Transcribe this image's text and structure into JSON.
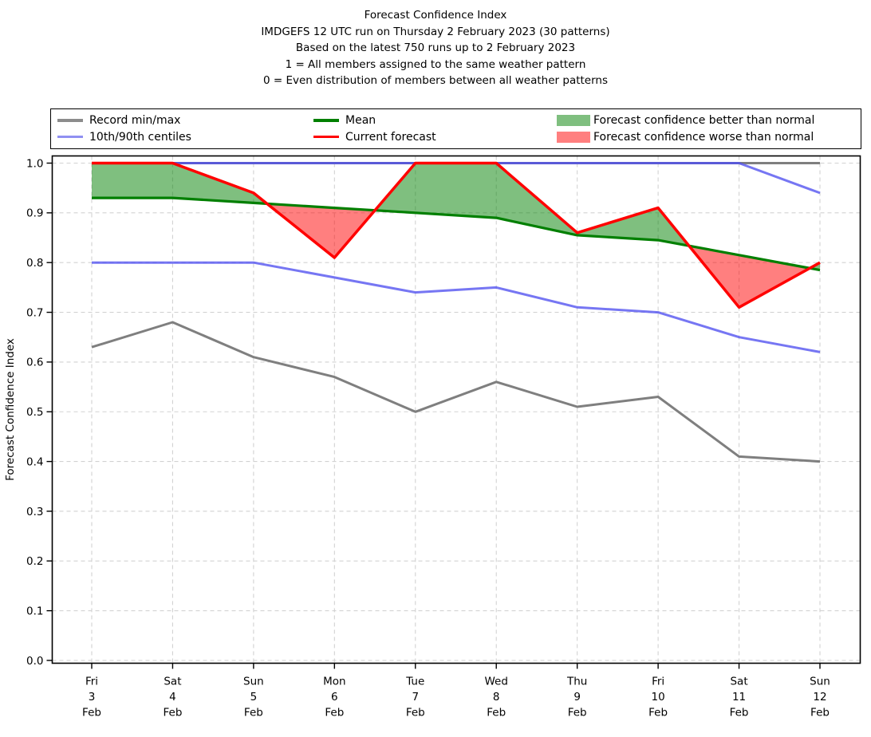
{
  "chart_data": {
    "type": "line",
    "title": "Forecast Confidence Index",
    "title_lines": [
      "Forecast Confidence Index",
      "IMDGEFS 12 UTC run on Thursday 2 February 2023 (30 patterns)",
      "Based on the latest 750 runs up to 2 February 2023",
      "1 = All members assigned to the same weather pattern",
      "0 = Even distribution of members between all weather patterns"
    ],
    "ylabel": "Forecast Confidence Index",
    "xlabel": "",
    "ylim": [
      0.0,
      1.0
    ],
    "yticks": [
      0.0,
      0.1,
      0.2,
      0.3,
      0.4,
      0.5,
      0.6,
      0.7,
      0.8,
      0.9,
      1.0
    ],
    "grid": true,
    "grid_style": "dashed",
    "legend_position": "top",
    "categories": [
      "Fri 3 Feb",
      "Sat 4 Feb",
      "Sun 5 Feb",
      "Mon 6 Feb",
      "Tue 7 Feb",
      "Wed 8 Feb",
      "Thu 9 Feb",
      "Fri 10 Feb",
      "Sat 11 Feb",
      "Sun 12 Feb"
    ],
    "x_tick_lines": [
      [
        "Fri",
        "3",
        "Feb"
      ],
      [
        "Sat",
        "4",
        "Feb"
      ],
      [
        "Sun",
        "5",
        "Feb"
      ],
      [
        "Mon",
        "6",
        "Feb"
      ],
      [
        "Tue",
        "7",
        "Feb"
      ],
      [
        "Wed",
        "8",
        "Feb"
      ],
      [
        "Thu",
        "9",
        "Feb"
      ],
      [
        "Fri",
        "10",
        "Feb"
      ],
      [
        "Sat",
        "11",
        "Feb"
      ],
      [
        "Sun",
        "12",
        "Feb"
      ]
    ],
    "series": [
      {
        "name": "Record max",
        "color": "#7f7f7f",
        "opacity": 1,
        "width": 3,
        "values": [
          1.0,
          1.0,
          1.0,
          1.0,
          1.0,
          1.0,
          1.0,
          1.0,
          1.0,
          1.0
        ]
      },
      {
        "name": "Record min",
        "color": "#7f7f7f",
        "opacity": 1,
        "width": 3,
        "values": [
          0.63,
          0.68,
          0.61,
          0.57,
          0.5,
          0.56,
          0.51,
          0.53,
          0.41,
          0.4
        ]
      },
      {
        "name": "90th centile",
        "color": "#5050f0",
        "opacity": 0.78,
        "width": 3,
        "values": [
          1.0,
          1.0,
          1.0,
          1.0,
          1.0,
          1.0,
          1.0,
          1.0,
          1.0,
          0.94
        ]
      },
      {
        "name": "10th centile",
        "color": "#5050f0",
        "opacity": 0.78,
        "width": 3,
        "values": [
          0.8,
          0.8,
          0.8,
          0.77,
          0.74,
          0.75,
          0.71,
          0.7,
          0.65,
          0.62
        ]
      },
      {
        "name": "Mean",
        "color": "#007f00",
        "opacity": 1,
        "width": 3.2,
        "values": [
          0.93,
          0.93,
          0.92,
          0.91,
          0.9,
          0.89,
          0.855,
          0.845,
          0.815,
          0.785
        ]
      },
      {
        "name": "Current forecast",
        "color": "#ff0000",
        "opacity": 1,
        "width": 3.5,
        "values": [
          1.0,
          1.0,
          0.94,
          0.81,
          1.0,
          1.0,
          0.86,
          0.91,
          0.71,
          0.8
        ]
      }
    ],
    "fills": {
      "better": {
        "label": "Forecast confidence better than normal",
        "color": "#008000",
        "opacity": 0.5
      },
      "worse": {
        "label": "Forecast confidence worse than normal",
        "color": "#ff0000",
        "opacity": 0.5
      }
    }
  },
  "legend": {
    "entries": [
      {
        "label": "Record min/max",
        "swatch": "line",
        "color": "#8c8c8c"
      },
      {
        "label": "10th/90th centiles",
        "swatch": "line",
        "color": "#9090f2"
      },
      {
        "label": "Mean",
        "swatch": "line",
        "color": "#007f00"
      },
      {
        "label": "Current forecast",
        "swatch": "line",
        "color": "#ff0000"
      },
      {
        "label": "Forecast confidence better than normal",
        "swatch": "patch",
        "color": "#7fbf7f"
      },
      {
        "label": "Forecast confidence worse than normal",
        "swatch": "patch",
        "color": "#ff7f7f"
      }
    ]
  }
}
